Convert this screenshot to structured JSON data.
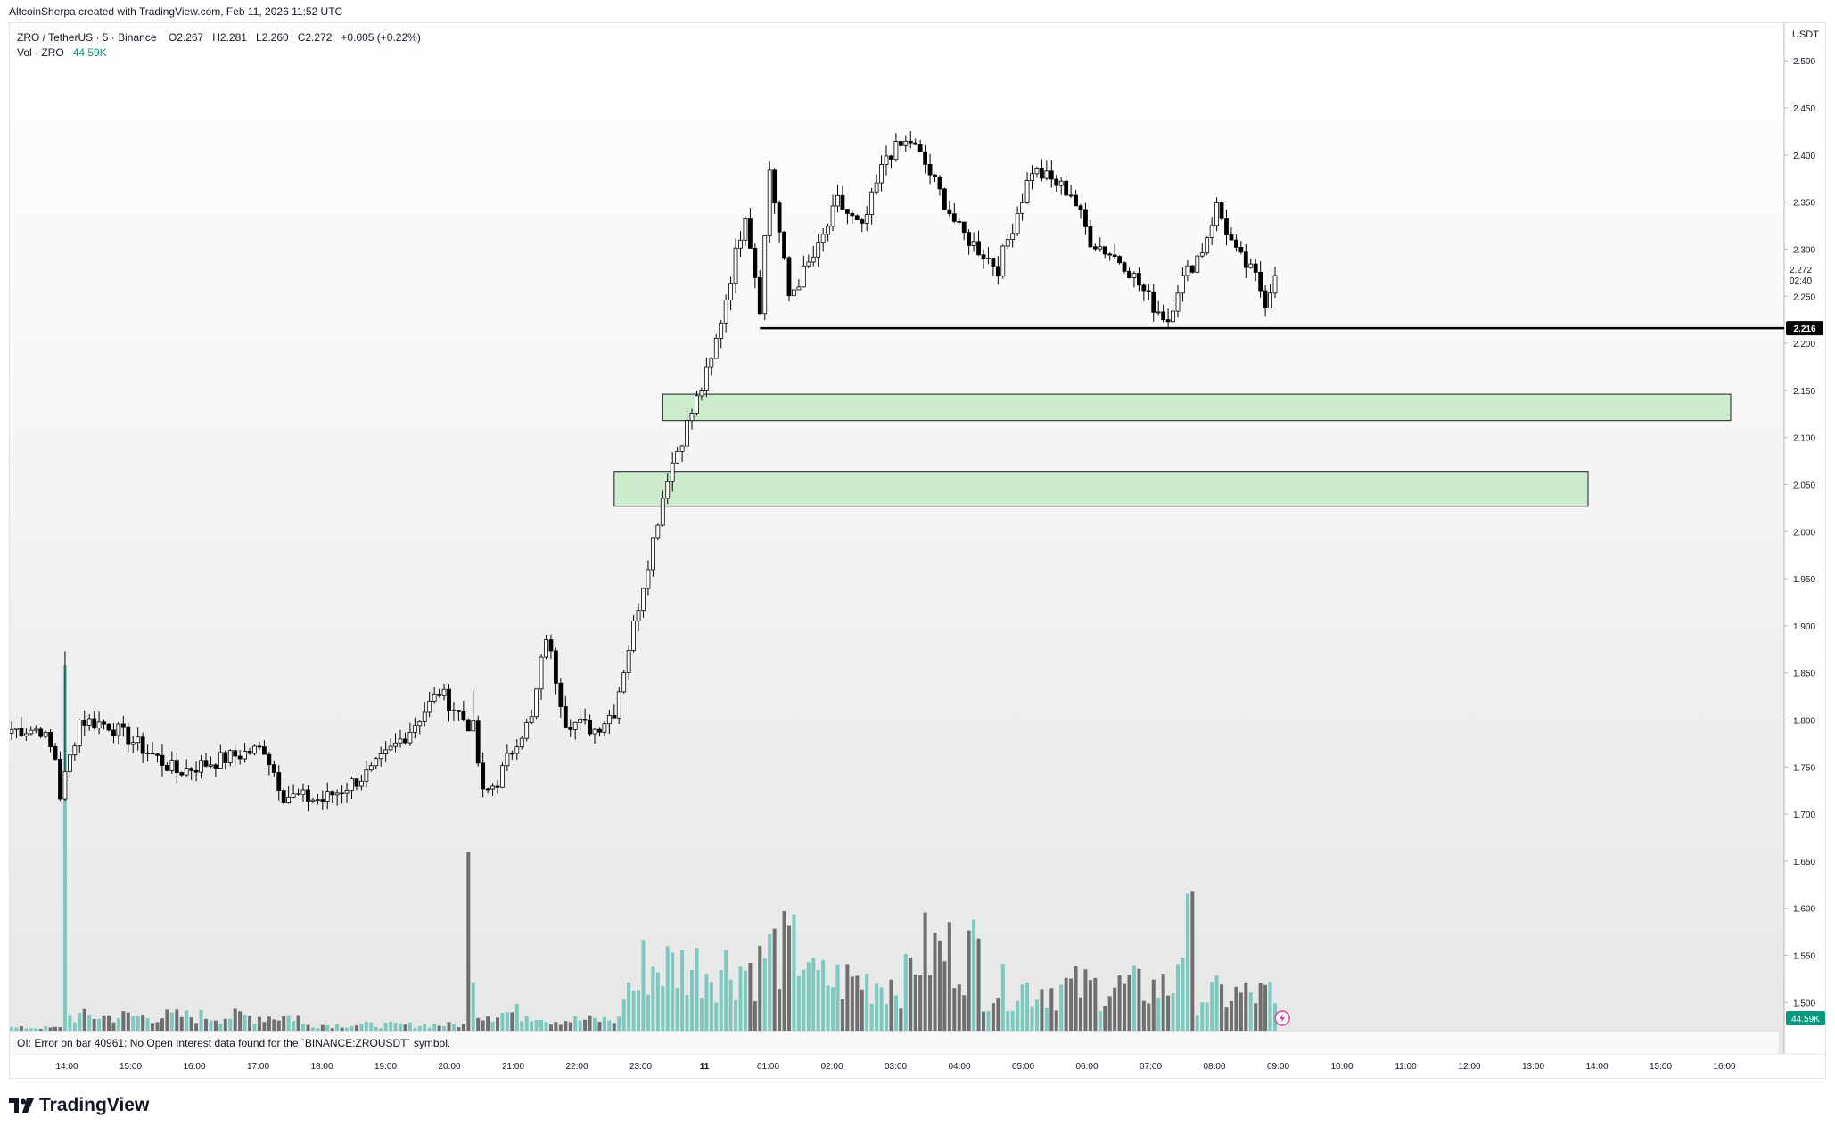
{
  "header": {
    "author_line": "AltcoinSherpa created with TradingView.com, Feb 11, 2026 11:52 UTC"
  },
  "legend": {
    "symbol": "ZRO / TetherUS · 5 · Binance",
    "o_label": "O",
    "o_value": "2.267",
    "h_label": "H",
    "h_value": "2.281",
    "l_label": "L",
    "l_value": "2.260",
    "c_label": "C",
    "c_value": "2.272",
    "change": "+0.005 (+0.22%)",
    "vol_label": "Vol · ZRO",
    "vol_value": "44.59K"
  },
  "oi_error": "OI: Error on bar 40961: No Open Interest data found for the `BINANCE:ZROUSDT` symbol.",
  "footer": {
    "logo_text": "TradingView"
  },
  "colors": {
    "up_body": "#ffffff",
    "down_body": "#000000",
    "candle_outline": "#000000",
    "volume_up": "#7dc8bf",
    "volume_down": "#6f6f6f",
    "zone_fill": "#cdeccd",
    "zone_border": "#1e1e1e",
    "line_support": "#000000",
    "last_price_badge": "#089981"
  },
  "chart_data": {
    "type": "candlestick",
    "currency_label": "USDT",
    "x_tick_labels": [
      "14:00",
      "15:00",
      "16:00",
      "17:00",
      "18:00",
      "19:00",
      "20:00",
      "21:00",
      "22:00",
      "23:00",
      "11",
      "01:00",
      "02:00",
      "03:00",
      "04:00",
      "05:00",
      "06:00",
      "07:00",
      "08:00",
      "09:00",
      "10:00",
      "11:00",
      "12:00",
      "13:00",
      "14:00",
      "15:00",
      "16:00"
    ],
    "y_tick_labels": [
      "2.500",
      "2.450",
      "2.400",
      "2.350",
      "2.300",
      "2.250",
      "2.200",
      "2.150",
      "2.100",
      "2.050",
      "2.000",
      "1.950",
      "1.900",
      "1.850",
      "1.800",
      "1.750",
      "1.700",
      "1.650",
      "1.600",
      "1.550",
      "1.500"
    ],
    "ylim": [
      1.47,
      2.54
    ],
    "last_price": "2.272",
    "countdown": "02:40",
    "support_price": "2.216",
    "volume_last_badge": "44.59K",
    "anchors": [
      [
        0,
        1.79
      ],
      [
        6,
        1.79
      ],
      [
        9,
        1.76
      ],
      [
        10,
        1.72
      ],
      [
        14,
        1.8
      ],
      [
        20,
        1.795
      ],
      [
        34,
        1.745
      ],
      [
        48,
        1.765
      ],
      [
        52,
        1.77
      ],
      [
        56,
        1.72
      ],
      [
        64,
        1.715
      ],
      [
        74,
        1.745
      ],
      [
        82,
        1.79
      ],
      [
        88,
        1.83
      ],
      [
        95,
        1.79
      ],
      [
        97,
        1.72
      ],
      [
        100,
        1.735
      ],
      [
        104,
        1.78
      ],
      [
        107,
        1.8
      ],
      [
        110,
        1.89
      ],
      [
        112,
        1.845
      ],
      [
        114,
        1.8
      ],
      [
        117,
        1.795
      ],
      [
        120,
        1.79
      ],
      [
        124,
        1.81
      ],
      [
        128,
        1.9
      ],
      [
        135,
        2.06
      ],
      [
        144,
        2.18
      ],
      [
        151,
        2.34
      ],
      [
        154,
        2.24
      ],
      [
        156,
        2.385
      ],
      [
        160,
        2.25
      ],
      [
        166,
        2.3
      ],
      [
        170,
        2.35
      ],
      [
        175,
        2.32
      ],
      [
        180,
        2.4
      ],
      [
        185,
        2.415
      ],
      [
        188,
        2.39
      ],
      [
        195,
        2.32
      ],
      [
        203,
        2.28
      ],
      [
        207,
        2.34
      ],
      [
        210,
        2.385
      ],
      [
        218,
        2.36
      ],
      [
        222,
        2.31
      ],
      [
        229,
        2.285
      ],
      [
        235,
        2.24
      ],
      [
        238,
        2.225
      ],
      [
        240,
        2.26
      ],
      [
        245,
        2.3
      ],
      [
        248,
        2.345
      ],
      [
        252,
        2.295
      ],
      [
        256,
        2.27
      ],
      [
        258,
        2.245
      ],
      [
        260,
        2.272
      ]
    ],
    "volume_anchors": [
      [
        0,
        4
      ],
      [
        11,
        125
      ],
      [
        12,
        20
      ],
      [
        60,
        8
      ],
      [
        94,
        150
      ],
      [
        96,
        25
      ],
      [
        110,
        15
      ],
      [
        126,
        60
      ],
      [
        130,
        90
      ],
      [
        155,
        110
      ],
      [
        165,
        70
      ],
      [
        185,
        90
      ],
      [
        186,
        110
      ],
      [
        200,
        60
      ],
      [
        240,
        130
      ],
      [
        244,
        50
      ],
      [
        260,
        30
      ]
    ],
    "zones": [
      {
        "from_price": 2.118,
        "to_price": 2.146,
        "label": ""
      },
      {
        "from_price": 2.027,
        "to_price": 2.064,
        "label": ""
      }
    ]
  }
}
